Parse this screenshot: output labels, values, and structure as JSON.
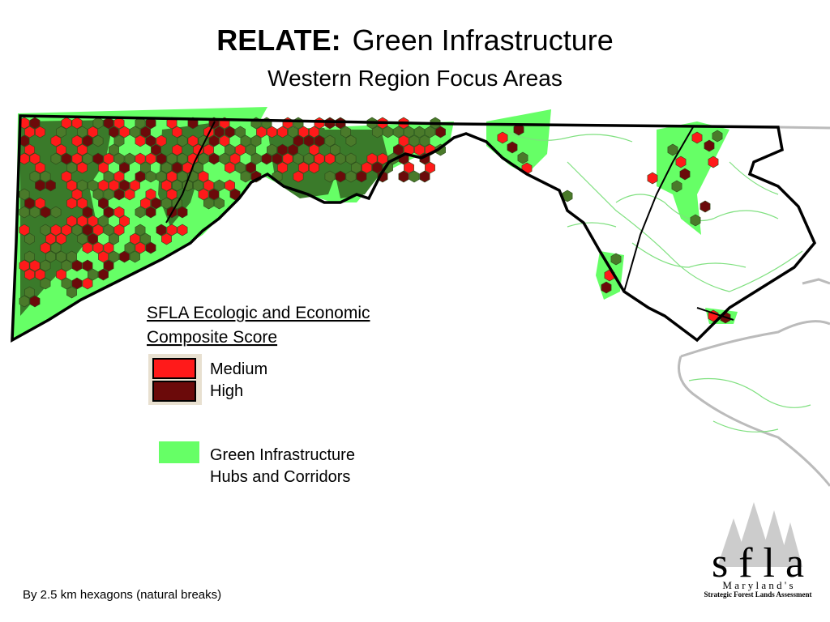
{
  "title": {
    "bold": "RELATE:",
    "rest": "Green Infrastructure",
    "subtitle": "Western Region Focus Areas"
  },
  "legend": {
    "title_lines": [
      "SFLA Ecologic and Economic",
      "Composite Score"
    ],
    "items": [
      {
        "label": "Medium",
        "color": "#ff1a1a"
      },
      {
        "label": "High",
        "color": "#6b0a0a"
      }
    ],
    "green": {
      "lines": [
        "Green Infrastructure",
        "Hubs and Corridors"
      ],
      "color": "#66ff66"
    }
  },
  "footnote": "By 2.5 km hexagons (natural breaks)",
  "logo": {
    "letters": "s f l a",
    "line2": "M a r y l a n d ' s",
    "line3": "Strategic Forest Lands Assessment"
  }
}
